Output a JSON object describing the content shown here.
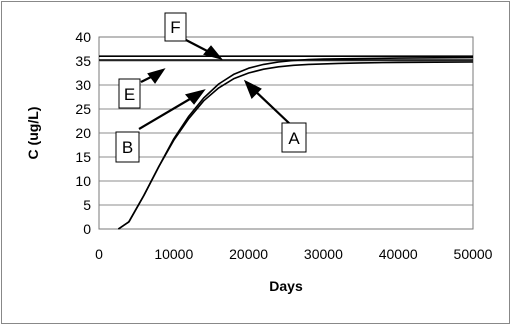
{
  "chart_data": {
    "type": "line",
    "title": "",
    "xlabel": "Days",
    "ylabel": "C (ug/L)",
    "xlim": [
      0,
      50000
    ],
    "ylim": [
      0,
      40
    ],
    "x_ticks": [
      0,
      10000,
      20000,
      30000,
      40000,
      50000
    ],
    "y_ticks": [
      0,
      5,
      10,
      15,
      20,
      25,
      30,
      35,
      40
    ],
    "grid": "horizontal",
    "legend": "none",
    "series": [
      {
        "name": "A",
        "x": [
          2600,
          4000,
          6000,
          8000,
          10000,
          12000,
          14000,
          16000,
          18000,
          20000,
          22000,
          24000,
          26000,
          28000,
          30000,
          32000,
          35000,
          40000,
          50000
        ],
        "y": [
          0,
          1.5,
          7,
          13,
          18.5,
          23,
          26.7,
          29.4,
          31.3,
          32.5,
          33.3,
          33.8,
          34.1,
          34.3,
          34.4,
          34.5,
          34.6,
          34.7,
          34.8
        ]
      },
      {
        "name": "B",
        "x": [
          2600,
          4000,
          6000,
          8000,
          10000,
          12000,
          14000,
          16000,
          18000,
          20000,
          22000,
          24000,
          26000,
          28000,
          30000,
          35000,
          40000,
          50000
        ],
        "y": [
          0,
          1.5,
          7,
          13,
          18.8,
          23.5,
          27.3,
          30.2,
          32.2,
          33.5,
          34.3,
          34.8,
          35.1,
          35.3,
          35.4,
          35.5,
          35.6,
          35.7
        ]
      },
      {
        "name": "E",
        "x": [
          0,
          50000
        ],
        "y": [
          35.2,
          35.2
        ]
      },
      {
        "name": "F",
        "x": [
          0,
          50000
        ],
        "y": [
          36.0,
          36.0
        ]
      }
    ],
    "annotations": [
      "F",
      "E",
      "B",
      "A"
    ],
    "colors": {
      "line": "#000000",
      "grid": "#8c8c8c",
      "frame": "#888888",
      "plot_border": "#7a7a7a"
    }
  }
}
